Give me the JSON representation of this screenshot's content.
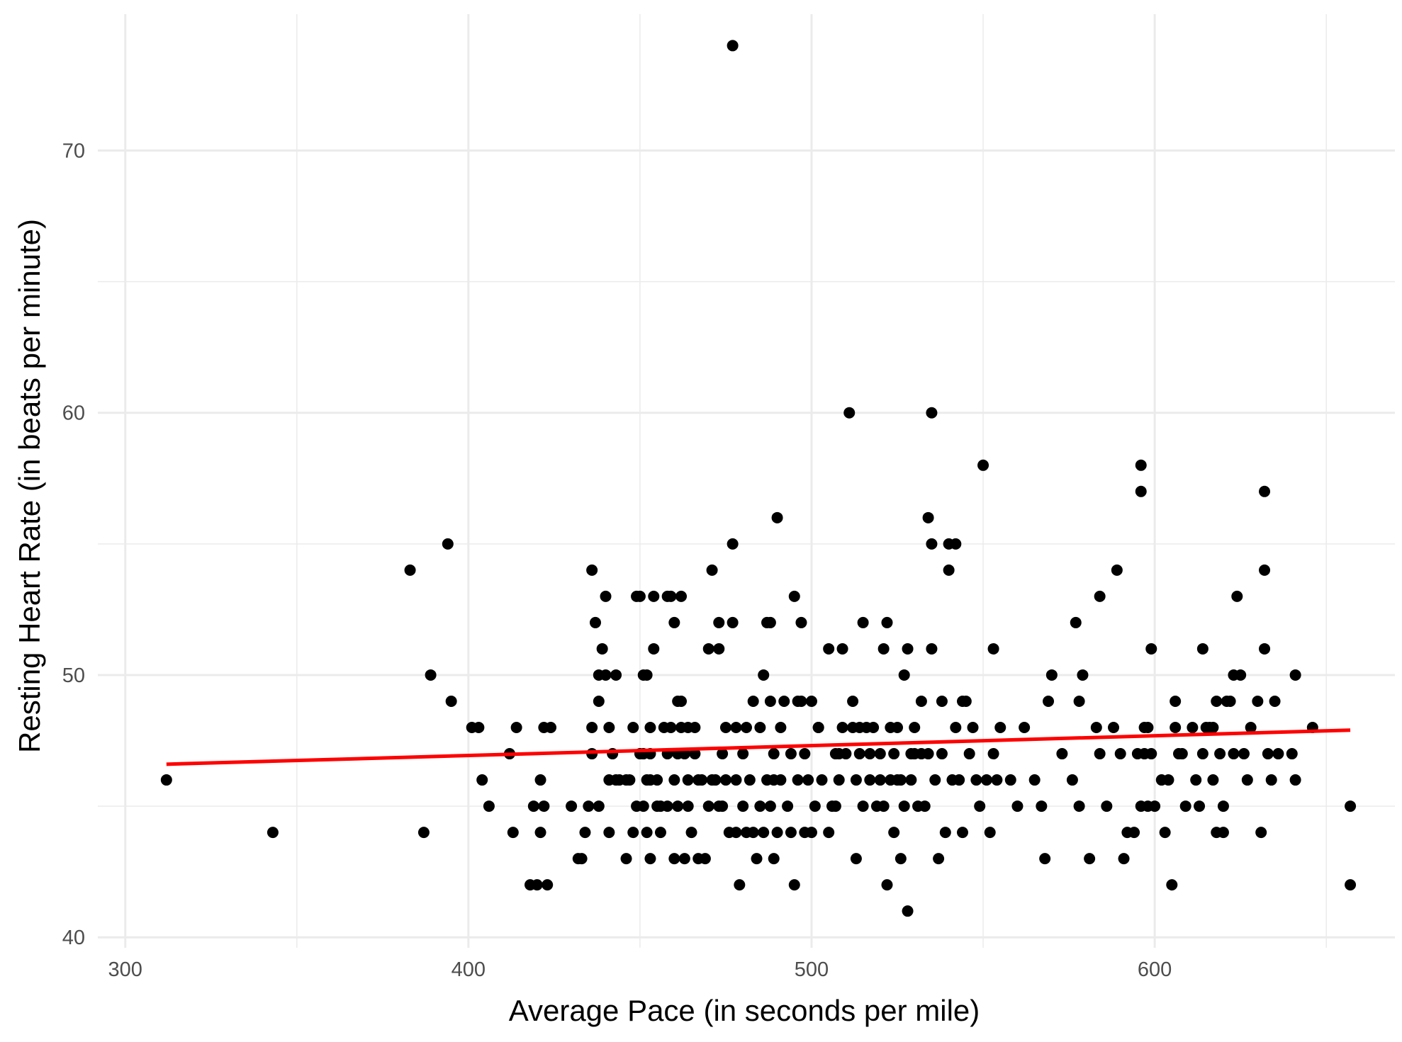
{
  "chart_data": {
    "type": "scatter",
    "title": "",
    "xlabel": "Average Pace (in seconds per mile)",
    "ylabel": "Resting Heart Rate (in beats per minute)",
    "xlim": [
      292,
      670
    ],
    "ylim": [
      39.6,
      75.2
    ],
    "x_ticks": [
      300,
      400,
      500,
      600
    ],
    "x_minor_ticks": [
      350,
      450,
      550,
      650
    ],
    "y_ticks": [
      40,
      50,
      60,
      70
    ],
    "y_minor_ticks": [
      45,
      55,
      65
    ],
    "grid": true,
    "colors": {
      "points": "#000000",
      "trend": "#ff0000",
      "grid": "#ebebeb"
    },
    "trend_line": {
      "x": [
        312,
        657
      ],
      "y": [
        46.6,
        47.9
      ]
    },
    "points": [
      [
        312,
        46
      ],
      [
        343,
        44
      ],
      [
        383,
        54
      ],
      [
        387,
        44
      ],
      [
        389,
        50
      ],
      [
        394,
        55
      ],
      [
        395,
        49
      ],
      [
        401,
        48
      ],
      [
        403,
        48
      ],
      [
        404,
        46
      ],
      [
        406,
        45
      ],
      [
        412,
        47
      ],
      [
        413,
        44
      ],
      [
        414,
        48
      ],
      [
        418,
        42
      ],
      [
        419,
        45
      ],
      [
        420,
        42
      ],
      [
        421,
        46
      ],
      [
        421,
        44
      ],
      [
        422,
        45
      ],
      [
        422,
        48
      ],
      [
        423,
        42
      ],
      [
        424,
        48
      ],
      [
        430,
        45
      ],
      [
        432,
        43
      ],
      [
        433,
        43
      ],
      [
        434,
        44
      ],
      [
        435,
        45
      ],
      [
        436,
        48
      ],
      [
        436,
        54
      ],
      [
        436,
        47
      ],
      [
        437,
        52
      ],
      [
        438,
        49
      ],
      [
        438,
        50
      ],
      [
        438,
        45
      ],
      [
        439,
        51
      ],
      [
        440,
        53
      ],
      [
        440,
        50
      ],
      [
        441,
        48
      ],
      [
        441,
        46
      ],
      [
        441,
        44
      ],
      [
        442,
        47
      ],
      [
        443,
        46
      ],
      [
        443,
        50
      ],
      [
        444,
        46
      ],
      [
        446,
        43
      ],
      [
        446,
        46
      ],
      [
        447,
        46
      ],
      [
        448,
        44
      ],
      [
        448,
        48
      ],
      [
        449,
        53
      ],
      [
        449,
        45
      ],
      [
        450,
        47
      ],
      [
        450,
        53
      ],
      [
        451,
        47
      ],
      [
        451,
        50
      ],
      [
        451,
        45
      ],
      [
        452,
        44
      ],
      [
        452,
        50
      ],
      [
        452,
        46
      ],
      [
        453,
        48
      ],
      [
        453,
        43
      ],
      [
        453,
        47
      ],
      [
        453,
        46
      ],
      [
        454,
        53
      ],
      [
        454,
        51
      ],
      [
        455,
        46
      ],
      [
        455,
        45
      ],
      [
        456,
        45
      ],
      [
        456,
        44
      ],
      [
        457,
        48
      ],
      [
        458,
        45
      ],
      [
        458,
        53
      ],
      [
        458,
        47
      ],
      [
        459,
        53
      ],
      [
        459,
        48
      ],
      [
        460,
        52
      ],
      [
        460,
        46
      ],
      [
        460,
        43
      ],
      [
        461,
        47
      ],
      [
        461,
        49
      ],
      [
        461,
        45
      ],
      [
        462,
        48
      ],
      [
        462,
        53
      ],
      [
        462,
        49
      ],
      [
        463,
        47
      ],
      [
        463,
        43
      ],
      [
        464,
        48
      ],
      [
        464,
        46
      ],
      [
        464,
        45
      ],
      [
        465,
        44
      ],
      [
        466,
        47
      ],
      [
        466,
        48
      ],
      [
        467,
        43
      ],
      [
        467,
        46
      ],
      [
        468,
        46
      ],
      [
        469,
        43
      ],
      [
        470,
        51
      ],
      [
        470,
        45
      ],
      [
        471,
        46
      ],
      [
        471,
        54
      ],
      [
        472,
        46
      ],
      [
        473,
        52
      ],
      [
        473,
        51
      ],
      [
        473,
        45
      ],
      [
        474,
        47
      ],
      [
        474,
        45
      ],
      [
        475,
        46
      ],
      [
        475,
        48
      ],
      [
        476,
        44
      ],
      [
        477,
        74
      ],
      [
        477,
        55
      ],
      [
        477,
        52
      ],
      [
        478,
        48
      ],
      [
        478,
        46
      ],
      [
        478,
        44
      ],
      [
        479,
        42
      ],
      [
        480,
        45
      ],
      [
        480,
        47
      ],
      [
        481,
        48
      ],
      [
        481,
        44
      ],
      [
        482,
        46
      ],
      [
        483,
        49
      ],
      [
        483,
        44
      ],
      [
        484,
        43
      ],
      [
        485,
        45
      ],
      [
        485,
        48
      ],
      [
        486,
        44
      ],
      [
        486,
        50
      ],
      [
        487,
        46
      ],
      [
        487,
        52
      ],
      [
        488,
        45
      ],
      [
        488,
        49
      ],
      [
        488,
        52
      ],
      [
        489,
        43
      ],
      [
        489,
        47
      ],
      [
        489,
        46
      ],
      [
        490,
        56
      ],
      [
        490,
        44
      ],
      [
        491,
        48
      ],
      [
        491,
        46
      ],
      [
        492,
        49
      ],
      [
        493,
        45
      ],
      [
        494,
        47
      ],
      [
        494,
        44
      ],
      [
        495,
        42
      ],
      [
        495,
        53
      ],
      [
        496,
        46
      ],
      [
        496,
        49
      ],
      [
        497,
        52
      ],
      [
        497,
        49
      ],
      [
        498,
        47
      ],
      [
        498,
        44
      ],
      [
        499,
        46
      ],
      [
        500,
        49
      ],
      [
        500,
        44
      ],
      [
        501,
        45
      ],
      [
        502,
        48
      ],
      [
        502,
        48
      ],
      [
        503,
        46
      ],
      [
        505,
        44
      ],
      [
        505,
        51
      ],
      [
        506,
        45
      ],
      [
        507,
        47
      ],
      [
        507,
        45
      ],
      [
        508,
        47
      ],
      [
        508,
        46
      ],
      [
        509,
        51
      ],
      [
        509,
        48
      ],
      [
        510,
        47
      ],
      [
        511,
        60
      ],
      [
        512,
        48
      ],
      [
        512,
        49
      ],
      [
        513,
        43
      ],
      [
        513,
        46
      ],
      [
        514,
        47
      ],
      [
        514,
        48
      ],
      [
        515,
        45
      ],
      [
        515,
        52
      ],
      [
        516,
        48
      ],
      [
        517,
        47
      ],
      [
        517,
        46
      ],
      [
        518,
        48
      ],
      [
        519,
        45
      ],
      [
        520,
        47
      ],
      [
        520,
        46
      ],
      [
        521,
        45
      ],
      [
        521,
        51
      ],
      [
        522,
        42
      ],
      [
        522,
        52
      ],
      [
        523,
        48
      ],
      [
        523,
        46
      ],
      [
        524,
        44
      ],
      [
        524,
        47
      ],
      [
        525,
        48
      ],
      [
        525,
        46
      ],
      [
        526,
        43
      ],
      [
        526,
        46
      ],
      [
        527,
        50
      ],
      [
        527,
        45
      ],
      [
        528,
        51
      ],
      [
        528,
        41
      ],
      [
        529,
        47
      ],
      [
        529,
        46
      ],
      [
        530,
        47
      ],
      [
        530,
        48
      ],
      [
        531,
        45
      ],
      [
        532,
        49
      ],
      [
        532,
        47
      ],
      [
        533,
        45
      ],
      [
        534,
        56
      ],
      [
        534,
        47
      ],
      [
        535,
        60
      ],
      [
        535,
        55
      ],
      [
        535,
        51
      ],
      [
        536,
        46
      ],
      [
        537,
        43
      ],
      [
        538,
        49
      ],
      [
        538,
        47
      ],
      [
        539,
        44
      ],
      [
        540,
        55
      ],
      [
        540,
        54
      ],
      [
        541,
        46
      ],
      [
        542,
        55
      ],
      [
        542,
        48
      ],
      [
        543,
        46
      ],
      [
        544,
        49
      ],
      [
        544,
        44
      ],
      [
        545,
        49
      ],
      [
        546,
        47
      ],
      [
        547,
        48
      ],
      [
        548,
        46
      ],
      [
        549,
        45
      ],
      [
        550,
        58
      ],
      [
        551,
        46
      ],
      [
        552,
        44
      ],
      [
        553,
        51
      ],
      [
        553,
        47
      ],
      [
        554,
        46
      ],
      [
        555,
        48
      ],
      [
        558,
        46
      ],
      [
        560,
        45
      ],
      [
        562,
        48
      ],
      [
        565,
        46
      ],
      [
        567,
        45
      ],
      [
        568,
        43
      ],
      [
        569,
        49
      ],
      [
        570,
        50
      ],
      [
        573,
        47
      ],
      [
        576,
        46
      ],
      [
        577,
        52
      ],
      [
        578,
        49
      ],
      [
        578,
        45
      ],
      [
        579,
        50
      ],
      [
        581,
        43
      ],
      [
        583,
        48
      ],
      [
        584,
        47
      ],
      [
        584,
        53
      ],
      [
        586,
        45
      ],
      [
        588,
        48
      ],
      [
        589,
        54
      ],
      [
        590,
        47
      ],
      [
        591,
        43
      ],
      [
        592,
        44
      ],
      [
        594,
        44
      ],
      [
        595,
        47
      ],
      [
        596,
        45
      ],
      [
        596,
        58
      ],
      [
        596,
        57
      ],
      [
        597,
        48
      ],
      [
        597,
        47
      ],
      [
        598,
        48
      ],
      [
        598,
        45
      ],
      [
        599,
        51
      ],
      [
        599,
        47
      ],
      [
        600,
        45
      ],
      [
        602,
        46
      ],
      [
        603,
        44
      ],
      [
        604,
        46
      ],
      [
        605,
        42
      ],
      [
        606,
        49
      ],
      [
        606,
        48
      ],
      [
        607,
        47
      ],
      [
        608,
        47
      ],
      [
        609,
        45
      ],
      [
        611,
        48
      ],
      [
        612,
        46
      ],
      [
        613,
        45
      ],
      [
        614,
        47
      ],
      [
        614,
        51
      ],
      [
        615,
        48
      ],
      [
        616,
        48
      ],
      [
        617,
        46
      ],
      [
        617,
        48
      ],
      [
        618,
        49
      ],
      [
        618,
        44
      ],
      [
        619,
        47
      ],
      [
        620,
        45
      ],
      [
        620,
        44
      ],
      [
        621,
        49
      ],
      [
        622,
        49
      ],
      [
        623,
        50
      ],
      [
        623,
        47
      ],
      [
        624,
        53
      ],
      [
        625,
        50
      ],
      [
        626,
        47
      ],
      [
        627,
        46
      ],
      [
        628,
        48
      ],
      [
        630,
        49
      ],
      [
        631,
        44
      ],
      [
        632,
        57
      ],
      [
        632,
        54
      ],
      [
        632,
        51
      ],
      [
        633,
        47
      ],
      [
        634,
        46
      ],
      [
        635,
        49
      ],
      [
        636,
        47
      ],
      [
        640,
        47
      ],
      [
        641,
        50
      ],
      [
        641,
        46
      ],
      [
        646,
        48
      ],
      [
        657,
        45
      ],
      [
        657,
        42
      ]
    ]
  }
}
